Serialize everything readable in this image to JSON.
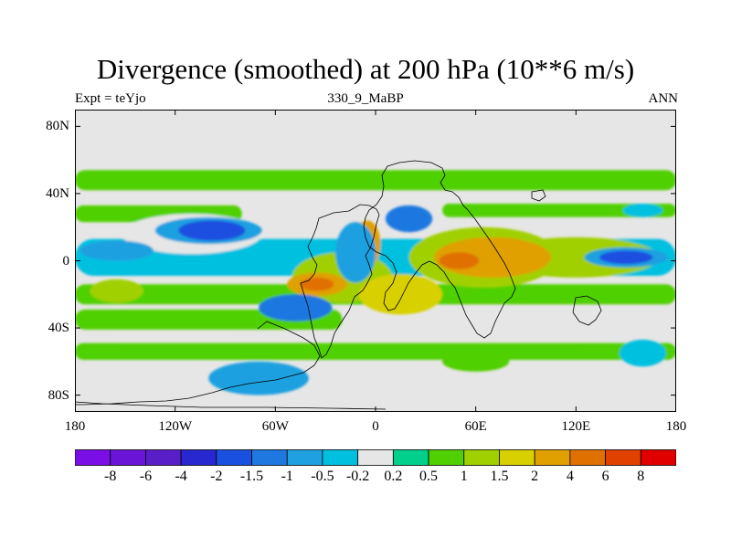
{
  "title": "Divergence (smoothed) at 200 hPa (10**6 m/s)",
  "subtitle_left": "Expt = teYjo",
  "subtitle_center": "330_9_MaBP",
  "subtitle_right": "ANN",
  "map": {
    "projection": "cylindrical-equidistant",
    "lon_range": [
      -180,
      180
    ],
    "lat_range": [
      -90,
      90
    ],
    "background_color": "#e6e6e6",
    "lat_ticks": [
      {
        "value": 80,
        "label": "80N"
      },
      {
        "value": 40,
        "label": "40N"
      },
      {
        "value": 0,
        "label": "0"
      },
      {
        "value": -40,
        "label": "40S"
      },
      {
        "value": -80,
        "label": "80S"
      }
    ],
    "lon_ticks": [
      {
        "value": -180,
        "label": "180"
      },
      {
        "value": -120,
        "label": "120W"
      },
      {
        "value": -60,
        "label": "60W"
      },
      {
        "value": 0,
        "label": "0"
      },
      {
        "value": 60,
        "label": "60E"
      },
      {
        "value": 120,
        "label": "120E"
      },
      {
        "value": 180,
        "label": "180"
      }
    ]
  },
  "chart_data": {
    "type": "heatmap",
    "title": "Divergence (smoothed) at 200 hPa (10**6 m/s)",
    "units": "10**6 m/s",
    "field": "divergence at 200 hPa",
    "bands_lat_lon": [
      {
        "lon0": -180,
        "lon1": 180,
        "lat": 48,
        "thick": 12,
        "level": 0.5
      },
      {
        "lon0": -180,
        "lon1": -80,
        "lat": 28,
        "thick": 10,
        "level": 0.5
      },
      {
        "lon0": -180,
        "lon1": 180,
        "lat": 2,
        "thick": 22,
        "level": -0.5
      },
      {
        "lon0": -180,
        "lon1": 180,
        "lat": -20,
        "thick": 12,
        "level": 0.5
      },
      {
        "lon0": -180,
        "lon1": -20,
        "lat": -35,
        "thick": 12,
        "level": 0.5
      },
      {
        "lon0": -180,
        "lon1": 180,
        "lat": -54,
        "thick": 10,
        "level": 0.5
      },
      {
        "lon0": 40,
        "lon1": 180,
        "lat": 30,
        "thick": 8,
        "level": 0.5
      }
    ],
    "blobs": [
      {
        "lon": -110,
        "lat": 16,
        "rx": 42,
        "ry": 12,
        "level": -0.2
      },
      {
        "lon": -100,
        "lat": 18,
        "rx": 32,
        "ry": 8,
        "level": -1
      },
      {
        "lon": -98,
        "lat": 18,
        "rx": 20,
        "ry": 6,
        "level": -2
      },
      {
        "lon": -155,
        "lat": 6,
        "rx": 22,
        "ry": 6,
        "level": -1
      },
      {
        "lon": 120,
        "lat": 2,
        "rx": 50,
        "ry": 12,
        "level": 1
      },
      {
        "lon": 150,
        "lat": 2,
        "rx": 25,
        "ry": 6,
        "level": -1
      },
      {
        "lon": 150,
        "lat": 2,
        "rx": 16,
        "ry": 4,
        "level": -2
      },
      {
        "lon": 65,
        "lat": 2,
        "rx": 45,
        "ry": 18,
        "level": 1
      },
      {
        "lon": 70,
        "lat": 2,
        "rx": 35,
        "ry": 12,
        "level": 2
      },
      {
        "lon": 50,
        "lat": 0,
        "rx": 12,
        "ry": 5,
        "level": 4
      },
      {
        "lon": -20,
        "lat": -10,
        "rx": 30,
        "ry": 15,
        "level": 1
      },
      {
        "lon": -35,
        "lat": -14,
        "rx": 18,
        "ry": 7,
        "level": 2
      },
      {
        "lon": -35,
        "lat": -14,
        "rx": 10,
        "ry": 4,
        "level": 4
      },
      {
        "lon": 15,
        "lat": -20,
        "rx": 25,
        "ry": 12,
        "level": 1.5
      },
      {
        "lon": -5,
        "lat": 10,
        "rx": 8,
        "ry": 14,
        "level": 2
      },
      {
        "lon": -12,
        "lat": 5,
        "rx": 12,
        "ry": 18,
        "level": -1
      },
      {
        "lon": -48,
        "lat": -28,
        "rx": 22,
        "ry": 8,
        "level": -1.5
      },
      {
        "lon": 20,
        "lat": 25,
        "rx": 14,
        "ry": 8,
        "level": -1.5
      },
      {
        "lon": -155,
        "lat": -18,
        "rx": 16,
        "ry": 7,
        "level": 1
      },
      {
        "lon": -70,
        "lat": -70,
        "rx": 30,
        "ry": 10,
        "level": -1
      },
      {
        "lon": 60,
        "lat": -60,
        "rx": 20,
        "ry": 6,
        "level": 0.5
      },
      {
        "lon": 160,
        "lat": -55,
        "rx": 14,
        "ry": 8,
        "level": -0.5
      },
      {
        "lon": 160,
        "lat": 30,
        "rx": 12,
        "ry": 4,
        "level": -0.5
      }
    ]
  },
  "colorbar": {
    "colors": [
      "#7a0ee6",
      "#6a14d8",
      "#5a1ec8",
      "#2828d0",
      "#1a50e0",
      "#1e78e0",
      "#1fa0e0",
      "#00c0e0",
      "#e6e6e6",
      "#00d08c",
      "#50d000",
      "#a0d000",
      "#d8d000",
      "#e0a000",
      "#e07000",
      "#e04000",
      "#e00000"
    ],
    "levels": [
      -8,
      -6,
      -4,
      -2,
      -1.5,
      -1,
      -0.5,
      -0.2,
      0.2,
      0.5,
      1,
      1.5,
      2,
      4,
      6,
      8
    ],
    "labels": [
      "-8",
      "-6",
      "-4",
      "-2",
      "-1.5",
      "-1",
      "-0.5",
      "-0.2",
      "0.2",
      "0.5",
      "1",
      "1.5",
      "2",
      "4",
      "6",
      "8"
    ]
  }
}
